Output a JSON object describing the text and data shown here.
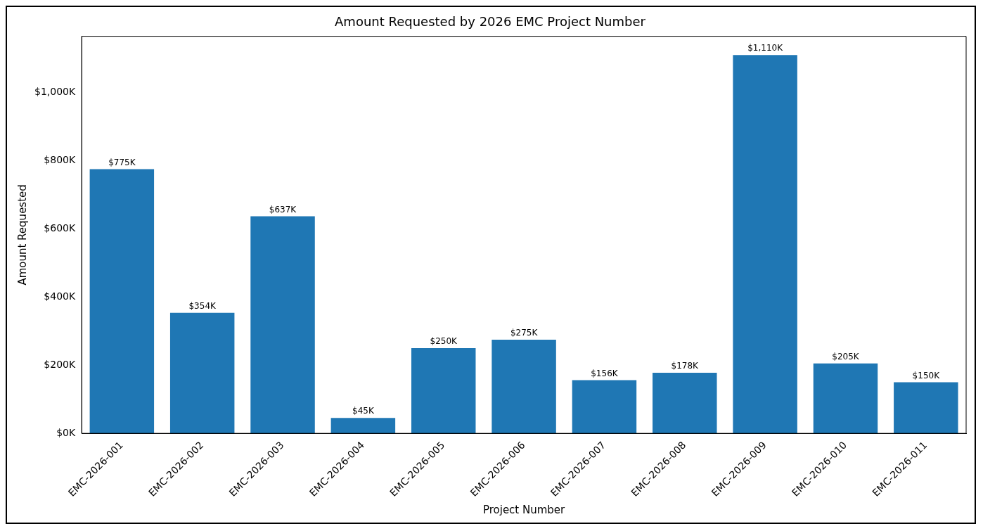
{
  "chart_data": {
    "type": "bar",
    "title": "Amount Requested by 2026 EMC Project Number",
    "xlabel": "Project Number",
    "ylabel": "Amount Requested",
    "categories": [
      "EMC-2026-001",
      "EMC-2026-002",
      "EMC-2026-003",
      "EMC-2026-004",
      "EMC-2026-005",
      "EMC-2026-006",
      "EMC-2026-007",
      "EMC-2026-008",
      "EMC-2026-009",
      "EMC-2026-010",
      "EMC-2026-011"
    ],
    "values": [
      775,
      354,
      637,
      45,
      250,
      275,
      156,
      178,
      1110,
      205,
      150
    ],
    "value_labels": [
      "$775K",
      "$354K",
      "$637K",
      "$45K",
      "$250K",
      "$275K",
      "$156K",
      "$178K",
      "$1,110K",
      "$205K",
      "$150K"
    ],
    "color": "#1f77b4",
    "ylim": [
      0,
      1165
    ],
    "yticks": [
      {
        "value": 0,
        "label": "$0K"
      },
      {
        "value": 200,
        "label": "$200K"
      },
      {
        "value": 400,
        "label": "$400K"
      },
      {
        "value": 600,
        "label": "$600K"
      },
      {
        "value": 800,
        "label": "$800K"
      },
      {
        "value": 1000,
        "label": "$1,000K"
      }
    ],
    "grid": false,
    "legend": false
  }
}
